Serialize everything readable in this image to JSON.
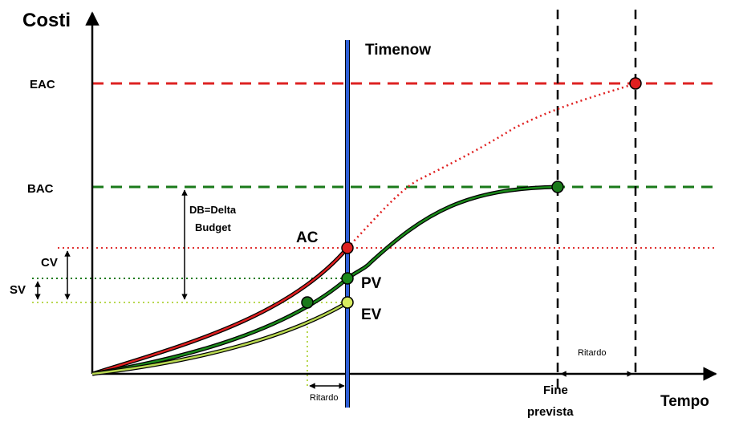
{
  "axes": {
    "y_label": "Costi",
    "x_label": "Tempo"
  },
  "levels": {
    "eac": {
      "label": "EAC",
      "color": "#dd2222"
    },
    "bac": {
      "label": "BAC",
      "color": "#1a7a1a"
    }
  },
  "timenow": {
    "label": "Timenow",
    "color": "#2f5fd8"
  },
  "curves": {
    "ac": {
      "label": "AC",
      "color": "#e02020"
    },
    "pv": {
      "label": "PV",
      "color": "#1a8a1a"
    },
    "ev": {
      "label": "EV",
      "color": "#b8d850"
    }
  },
  "variances": {
    "cv": "CV",
    "sv": "SV",
    "db_line1": "DB=Delta",
    "db_line2": "Budget"
  },
  "delays": {
    "ritardo_bottom": "Ritardo",
    "ritardo_right": "Ritardo"
  },
  "fine_prevista": {
    "line1": "Fine",
    "line2": "prevista"
  }
}
